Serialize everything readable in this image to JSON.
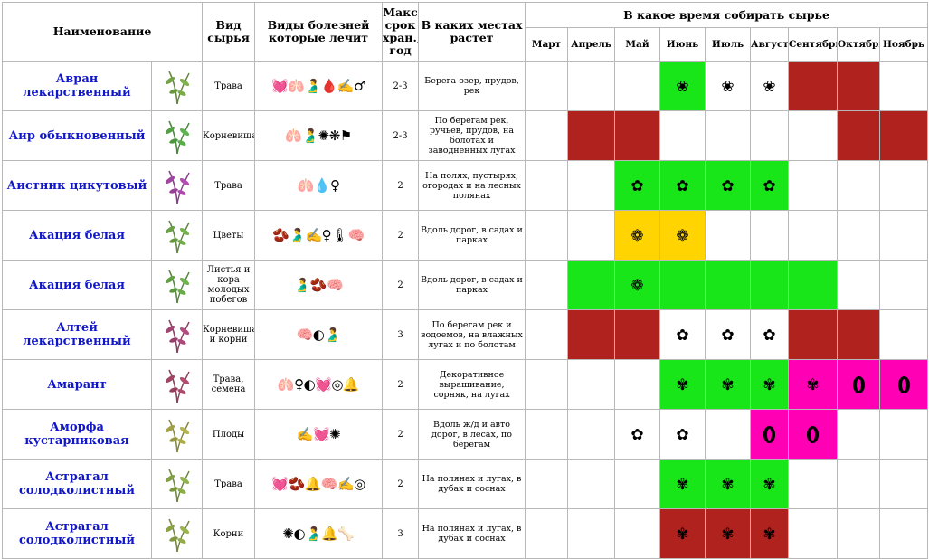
{
  "header": {
    "name": "Наименование",
    "type": "Вид сырья",
    "diseases": "Виды болезней которые лечит",
    "storage": "Макс срок хран., год",
    "places": "В каких местах растет",
    "harvest_group": "В какое время собирать сырье",
    "months": [
      "Март",
      "Апрель",
      "Май",
      "Июнь",
      "Июль",
      "Август",
      "Сентябрь",
      "Октябрь",
      "Ноябрь"
    ]
  },
  "colors": {
    "red": "#b0221e",
    "green": "#19e619",
    "yellow": "#ffd400",
    "pink": "#ff00b4",
    "name_text": "#1016c9"
  },
  "rows": [
    {
      "name": "Авран лекарственный",
      "image": "plant-photo-avran",
      "type": "Трава",
      "diseases": "💓🫁🫃🩸✍️♂",
      "storage": "2-3",
      "places": "Берега озер, прудов, рек",
      "months": [
        {
          "color": "none",
          "mark": ""
        },
        {
          "color": "none",
          "mark": ""
        },
        {
          "color": "none",
          "mark": ""
        },
        {
          "color": "green",
          "mark": "❀"
        },
        {
          "color": "none",
          "mark": "❀"
        },
        {
          "color": "none",
          "mark": "❀"
        },
        {
          "color": "red",
          "mark": ""
        },
        {
          "color": "red",
          "mark": ""
        },
        {
          "color": "none",
          "mark": ""
        }
      ]
    },
    {
      "name": "Аир обыкновенный",
      "image": "plant-photo-air",
      "type": "Корневища",
      "diseases": "🫁🫃✺❋⚑",
      "storage": "2-3",
      "places": "По берегам рек, ручьев, прудов, на болотах и заводненных лугах",
      "months": [
        {
          "color": "none",
          "mark": ""
        },
        {
          "color": "red",
          "mark": ""
        },
        {
          "color": "red",
          "mark": ""
        },
        {
          "color": "none",
          "mark": ""
        },
        {
          "color": "none",
          "mark": ""
        },
        {
          "color": "none",
          "mark": ""
        },
        {
          "color": "none",
          "mark": ""
        },
        {
          "color": "red",
          "mark": ""
        },
        {
          "color": "red",
          "mark": ""
        }
      ]
    },
    {
      "name": "Аистник цикутовый",
      "image": "plant-photo-aistnik",
      "type": "Трава",
      "diseases": "🫁💧♀",
      "storage": "2",
      "places": "На полях, пустырях, огородах и на лесных полянах",
      "months": [
        {
          "color": "none",
          "mark": ""
        },
        {
          "color": "none",
          "mark": ""
        },
        {
          "color": "green",
          "mark": "✿"
        },
        {
          "color": "green",
          "mark": "✿"
        },
        {
          "color": "green",
          "mark": "✿"
        },
        {
          "color": "green",
          "mark": "✿"
        },
        {
          "color": "none",
          "mark": ""
        },
        {
          "color": "none",
          "mark": ""
        },
        {
          "color": "none",
          "mark": ""
        }
      ]
    },
    {
      "name": "Акация белая",
      "image": "plant-photo-akacia-flowers",
      "type": "Цветы",
      "diseases": "🫘🫃✍♀🌡🧠",
      "storage": "2",
      "places": "Вдоль дорог, в садах и парках",
      "months": [
        {
          "color": "none",
          "mark": ""
        },
        {
          "color": "none",
          "mark": ""
        },
        {
          "color": "yellow",
          "mark": "❁"
        },
        {
          "color": "yellow",
          "mark": "❁"
        },
        {
          "color": "none",
          "mark": ""
        },
        {
          "color": "none",
          "mark": ""
        },
        {
          "color": "none",
          "mark": ""
        },
        {
          "color": "none",
          "mark": ""
        },
        {
          "color": "none",
          "mark": ""
        }
      ]
    },
    {
      "name": "Акация белая",
      "image": "plant-photo-akacia-leaves",
      "type": "Листья и кора молодых побегов",
      "diseases": "🫃🫘🧠",
      "storage": "2",
      "places": "Вдоль дорог, в садах и парках",
      "months": [
        {
          "color": "none",
          "mark": ""
        },
        {
          "color": "green",
          "mark": ""
        },
        {
          "color": "green",
          "mark": "❁"
        },
        {
          "color": "green",
          "mark": ""
        },
        {
          "color": "green",
          "mark": ""
        },
        {
          "color": "green",
          "mark": ""
        },
        {
          "color": "green",
          "mark": ""
        },
        {
          "color": "none",
          "mark": ""
        },
        {
          "color": "none",
          "mark": ""
        }
      ]
    },
    {
      "name": "Алтей лекарственный",
      "image": "plant-photo-altey",
      "type": "Корневища и корни",
      "diseases": "🧠◐🫃",
      "storage": "3",
      "places": "По берегам рек и водоемов, на влажных лугах и по болотам",
      "months": [
        {
          "color": "none",
          "mark": ""
        },
        {
          "color": "red",
          "mark": ""
        },
        {
          "color": "red",
          "mark": ""
        },
        {
          "color": "none",
          "mark": "✿"
        },
        {
          "color": "none",
          "mark": "✿"
        },
        {
          "color": "none",
          "mark": "✿"
        },
        {
          "color": "red",
          "mark": ""
        },
        {
          "color": "red",
          "mark": ""
        },
        {
          "color": "none",
          "mark": ""
        }
      ]
    },
    {
      "name": "Амарант",
      "image": "plant-photo-amarant",
      "type": "Трава, семена",
      "diseases": "🫁♀◐💓◎🔔",
      "storage": "2",
      "places": "Декоративное выращивание, сорняк, на лугах",
      "months": [
        {
          "color": "none",
          "mark": ""
        },
        {
          "color": "none",
          "mark": ""
        },
        {
          "color": "none",
          "mark": ""
        },
        {
          "color": "green",
          "mark": "✾"
        },
        {
          "color": "green",
          "mark": "✾"
        },
        {
          "color": "green",
          "mark": "✾"
        },
        {
          "color": "pink",
          "mark": "✾"
        },
        {
          "color": "pink",
          "mark": "seed"
        },
        {
          "color": "pink",
          "mark": "seed"
        }
      ]
    },
    {
      "name": "Аморфа кустарниковая",
      "image": "plant-photo-amorfa",
      "type": "Плоды",
      "diseases": "✍💓✺",
      "storage": "2",
      "places": "Вдоль ж/д и авто дорог, в лесах, по берегам",
      "months": [
        {
          "color": "none",
          "mark": ""
        },
        {
          "color": "none",
          "mark": ""
        },
        {
          "color": "none",
          "mark": "✿"
        },
        {
          "color": "none",
          "mark": "✿"
        },
        {
          "color": "none",
          "mark": ""
        },
        {
          "color": "pink",
          "mark": "seed"
        },
        {
          "color": "pink",
          "mark": "seed"
        },
        {
          "color": "none",
          "mark": ""
        },
        {
          "color": "none",
          "mark": ""
        }
      ]
    },
    {
      "name": "Астрагал солодколистный",
      "image": "plant-photo-astragal-grass",
      "type": "Трава",
      "diseases": "💓🫘🔔🧠✍◎",
      "storage": "2",
      "places": "На полянах и лугах, в дубах и соснах",
      "months": [
        {
          "color": "none",
          "mark": ""
        },
        {
          "color": "none",
          "mark": ""
        },
        {
          "color": "none",
          "mark": ""
        },
        {
          "color": "green",
          "mark": "✾"
        },
        {
          "color": "green",
          "mark": "✾"
        },
        {
          "color": "green",
          "mark": "✾"
        },
        {
          "color": "none",
          "mark": ""
        },
        {
          "color": "none",
          "mark": ""
        },
        {
          "color": "none",
          "mark": ""
        }
      ]
    },
    {
      "name": "Астрагал солодколистный",
      "image": "plant-photo-astragal-root",
      "type": "Корни",
      "diseases": "✺◐🫃🔔🦴",
      "storage": "3",
      "places": "На полянах и лугах, в дубах и соснах",
      "months": [
        {
          "color": "none",
          "mark": ""
        },
        {
          "color": "none",
          "mark": ""
        },
        {
          "color": "none",
          "mark": ""
        },
        {
          "color": "red",
          "mark": "✾"
        },
        {
          "color": "red",
          "mark": "✾"
        },
        {
          "color": "red",
          "mark": "✾"
        },
        {
          "color": "none",
          "mark": ""
        },
        {
          "color": "none",
          "mark": ""
        },
        {
          "color": "none",
          "mark": ""
        }
      ]
    }
  ]
}
